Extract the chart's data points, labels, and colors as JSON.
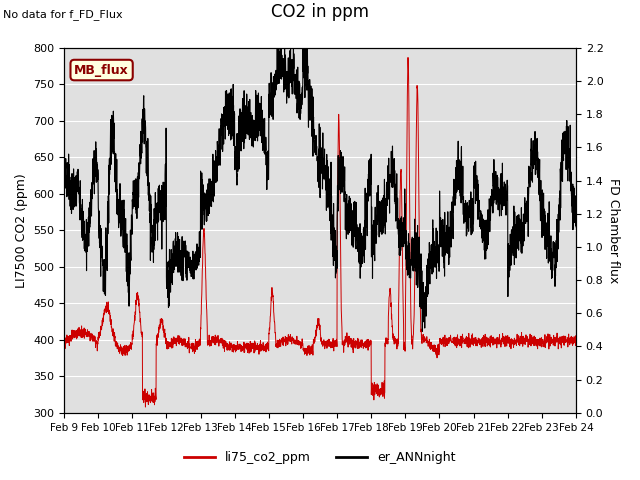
{
  "title": "CO2 in ppm",
  "ylabel_left": "LI7500 CO2 (ppm)",
  "ylabel_right": "FD Chamber flux",
  "no_data_text": "No data for f_FD_Flux",
  "mb_flux_label": "MB_flux",
  "ylim_left": [
    300,
    800
  ],
  "ylim_right": [
    0.0,
    2.2
  ],
  "legend_labels": [
    "li75_co2_ppm",
    "er_ANNnight"
  ],
  "legend_colors": [
    "#cc0000",
    "#000000"
  ],
  "line_color_red": "#cc0000",
  "line_color_black": "#000000",
  "bg_color": "#e0e0e0",
  "fig_color": "#ffffff",
  "grid_color": "#ffffff",
  "xtick_labels": [
    "Feb 9",
    "Feb 10",
    "Feb 11",
    "Feb 12",
    "Feb 13",
    "Feb 14",
    "Feb 15",
    "Feb 16",
    "Feb 17",
    "Feb 18",
    "Feb 19",
    "Feb 20",
    "Feb 21",
    "Feb 22",
    "Feb 23",
    "Feb 24"
  ],
  "n_points": 3000
}
